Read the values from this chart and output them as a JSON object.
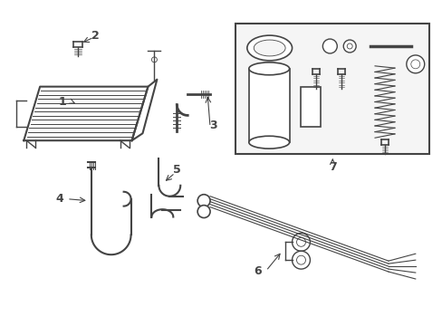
{
  "bg_color": "#ffffff",
  "line_color": "#444444",
  "box_bg": "#f5f5f5",
  "fig_width": 4.89,
  "fig_height": 3.6,
  "dpi": 100
}
